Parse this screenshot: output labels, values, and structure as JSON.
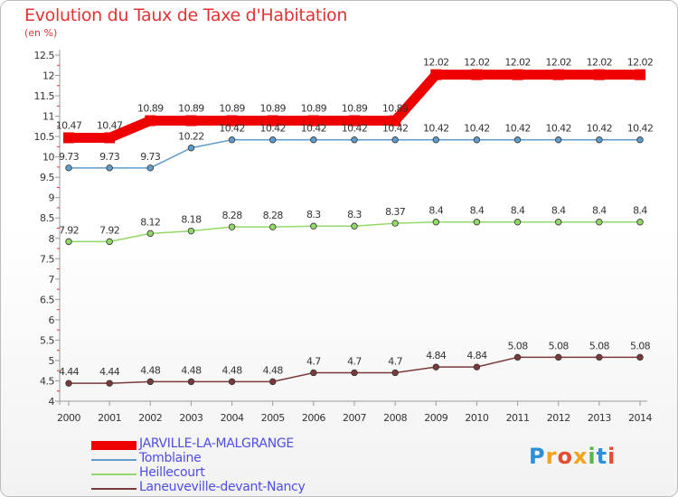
{
  "header": {
    "title": "Evolution du Taux de Taxe d'Habitation",
    "subtitle": "(en %)"
  },
  "logo": {
    "text": "Proxiti",
    "colors": [
      "#2e8fd6",
      "#f2a31b",
      "#e64c2e",
      "#f2a31b",
      "#57b847",
      "#2e8fd6",
      "#e64c2e"
    ]
  },
  "chart_data": {
    "type": "line",
    "x": [
      "2000",
      "2001",
      "2002",
      "2003",
      "2004",
      "2005",
      "2006",
      "2007",
      "2008",
      "2009",
      "2010",
      "2011",
      "2012",
      "2013",
      "2014"
    ],
    "ylim": [
      4,
      12.5
    ],
    "yticks": [
      "4",
      "4.5",
      "5",
      "5.5",
      "6",
      "6.5",
      "7",
      "7.5",
      "8",
      "8.5",
      "9",
      "9.5",
      "10",
      "10.5",
      "11",
      "11.5",
      "12",
      "12.5"
    ],
    "grid": false,
    "legend_position": "bottom-left",
    "series": [
      {
        "name": "JARVILLE-LA-MALGRANGE",
        "color": "#ee0000",
        "values": [
          10.47,
          10.47,
          10.89,
          10.89,
          10.89,
          10.89,
          10.89,
          10.89,
          10.89,
          12.02,
          12.02,
          12.02,
          12.02,
          12.02,
          12.02
        ],
        "labels": [
          "10.47",
          "10.47",
          "10.89",
          "10.89",
          "10.89",
          "10.89",
          "10.89",
          "10.89",
          "10.89",
          "12.02",
          "12.02",
          "12.02",
          "12.02",
          "12.02",
          "12.02"
        ]
      },
      {
        "name": "Tomblaine",
        "color": "#5f9ccb",
        "values": [
          9.73,
          9.73,
          9.73,
          10.22,
          10.42,
          10.42,
          10.42,
          10.42,
          10.42,
          10.42,
          10.42,
          10.42,
          10.42,
          10.42,
          10.42
        ],
        "labels": [
          "9.73",
          "9.73",
          "9.73",
          "10.22",
          "10.42",
          "10.42",
          "10.42",
          "10.42",
          "10.42",
          "10.42",
          "10.42",
          "10.42",
          "10.42",
          "10.42",
          "10.42"
        ]
      },
      {
        "name": "Heillecourt",
        "color": "#93d86a",
        "values": [
          7.92,
          7.92,
          8.12,
          8.18,
          8.28,
          8.28,
          8.3,
          8.3,
          8.37,
          8.4,
          8.4,
          8.4,
          8.4,
          8.4,
          8.4
        ],
        "labels": [
          "7.92",
          "7.92",
          "8.12",
          "8.18",
          "8.28",
          "8.28",
          "8.3",
          "8.3",
          "8.37",
          "8.4",
          "8.4",
          "8.4",
          "8.4",
          "8.4",
          "8.4"
        ]
      },
      {
        "name": "Laneuveville-devant-Nancy",
        "color": "#7a3a3a",
        "values": [
          4.44,
          4.44,
          4.48,
          4.48,
          4.48,
          4.48,
          4.7,
          4.7,
          4.7,
          4.84,
          4.84,
          5.08,
          5.08,
          5.08,
          5.08
        ],
        "labels": [
          "4.44",
          "4.44",
          "4.48",
          "4.48",
          "4.48",
          "4.48",
          "4.7",
          "4.7",
          "4.7",
          "4.84",
          "4.84",
          "5.08",
          "5.08",
          "5.08",
          "5.08"
        ]
      }
    ]
  }
}
